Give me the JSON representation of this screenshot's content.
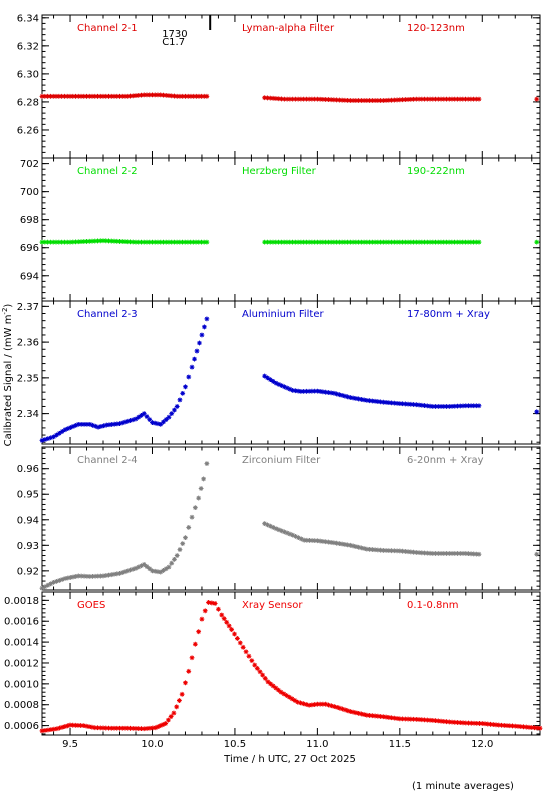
{
  "chart_data": {
    "type": "scatter",
    "xlabel": "Time / h UTC, 27 Oct 2025",
    "ylabel": "Calibrated Signal / (mW m",
    "ylabel_sup": "-2",
    "ylabel_close": ")",
    "xlim": [
      9.33,
      12.35
    ],
    "xticks": [
      9.5,
      10.0,
      10.5,
      11.0,
      11.5,
      12.0
    ],
    "xtick_labels": [
      "9.5",
      "10.0",
      "10.5",
      "11.0",
      "11.5",
      "12.0"
    ],
    "marker": "asterisk",
    "data_gap_hours": [
      10.34,
      10.68
    ],
    "flare_marker": {
      "time": 10.35,
      "label": "1730",
      "class": "C1.7"
    },
    "footnote": "(1 minute averages)",
    "panels": [
      {
        "id": "ch21",
        "channel": "Channel 2-1",
        "filter": "Lyman-alpha Filter",
        "band": "120-123nm",
        "color": "#dd0000",
        "ylim": [
          6.24,
          6.342
        ],
        "yticks": [
          6.26,
          6.28,
          6.3,
          6.32,
          6.34
        ],
        "ytick_labels": [
          "6.26",
          "6.28",
          "6.30",
          "6.32",
          "6.34"
        ],
        "series": [
          {
            "x": [
              9.33,
              9.5,
              9.7,
              9.85,
              9.95,
              10.05,
              10.15,
              10.25,
              10.33
            ],
            "y": [
              6.284,
              6.284,
              6.284,
              6.284,
              6.285,
              6.285,
              6.284,
              6.284,
              6.284
            ]
          },
          {
            "x": [
              10.68,
              10.8,
              11.0,
              11.2,
              11.4,
              11.6,
              11.8,
              11.98
            ],
            "y": [
              6.283,
              6.282,
              6.282,
              6.281,
              6.281,
              6.282,
              6.282,
              6.282
            ]
          },
          {
            "x": [
              12.33
            ],
            "y": [
              6.282
            ]
          }
        ]
      },
      {
        "id": "ch22",
        "channel": "Channel 2-2",
        "filter": "Herzberg Filter",
        "band": "190-222nm",
        "color": "#00dd00",
        "ylim": [
          692.2,
          702.4
        ],
        "yticks": [
          694,
          696,
          698,
          700,
          702
        ],
        "ytick_labels": [
          "694",
          "696",
          "698",
          "700",
          "702"
        ],
        "series": [
          {
            "x": [
              9.33,
              9.5,
              9.7,
              9.9,
              10.1,
              10.33
            ],
            "y": [
              696.4,
              696.4,
              696.5,
              696.4,
              696.4,
              696.4
            ]
          },
          {
            "x": [
              10.68,
              10.9,
              11.1,
              11.3,
              11.5,
              11.7,
              11.98
            ],
            "y": [
              696.4,
              696.4,
              696.4,
              696.4,
              696.4,
              696.4,
              696.4
            ]
          },
          {
            "x": [
              12.33
            ],
            "y": [
              696.4
            ]
          }
        ]
      },
      {
        "id": "ch23",
        "channel": "Channel 2-3",
        "filter": "Aluminium Filter",
        "band": "17-80nm + Xray",
        "color": "#0000cc",
        "ylim": [
          2.3315,
          2.3715
        ],
        "yticks": [
          2.34,
          2.35,
          2.36,
          2.37
        ],
        "ytick_labels": [
          "2.34",
          "2.35",
          "2.36",
          "2.37"
        ],
        "series": [
          {
            "x": [
              9.33,
              9.4,
              9.47,
              9.55,
              9.62,
              9.67,
              9.72,
              9.8,
              9.9,
              9.95,
              10.0,
              10.05,
              10.1,
              10.15,
              10.2,
              10.24,
              10.27,
              10.3,
              10.33
            ],
            "y": [
              2.3325,
              2.3335,
              2.3355,
              2.337,
              2.337,
              2.3362,
              2.3368,
              2.3372,
              2.3385,
              2.34,
              2.3375,
              2.337,
              2.339,
              2.342,
              2.3475,
              2.353,
              2.3575,
              2.362,
              2.3665
            ]
          },
          {
            "x": [
              10.68,
              10.75,
              10.85,
              10.9,
              11.0,
              11.1,
              11.2,
              11.3,
              11.4,
              11.5,
              11.6,
              11.7,
              11.8,
              11.9,
              11.98
            ],
            "y": [
              2.3505,
              2.3485,
              2.3465,
              2.3462,
              2.3463,
              2.3457,
              2.3445,
              2.3437,
              2.3432,
              2.3428,
              2.3425,
              2.342,
              2.342,
              2.3422,
              2.3422
            ]
          },
          {
            "x": [
              12.33
            ],
            "y": [
              2.3405
            ]
          }
        ]
      },
      {
        "id": "ch24",
        "channel": "Channel 2-4",
        "filter": "Zirconium Filter",
        "band": "6-20nm + Xray",
        "color": "#808080",
        "ylim": [
          0.9125,
          0.9685
        ],
        "yticks": [
          0.92,
          0.93,
          0.94,
          0.95,
          0.96
        ],
        "ytick_labels": [
          "0.92",
          "0.93",
          "0.94",
          "0.95",
          "0.96"
        ],
        "series": [
          {
            "x": [
              9.33,
              9.4,
              9.47,
              9.55,
              9.62,
              9.7,
              9.8,
              9.9,
              9.95,
              10.0,
              10.05,
              10.1,
              10.15,
              10.2,
              10.24,
              10.28,
              10.31,
              10.33
            ],
            "y": [
              0.9132,
              0.9155,
              0.917,
              0.918,
              0.9178,
              0.918,
              0.919,
              0.921,
              0.9225,
              0.92,
              0.9195,
              0.9215,
              0.926,
              0.933,
              0.941,
              0.9485,
              0.956,
              0.962
            ]
          },
          {
            "x": [
              10.68,
              10.75,
              10.85,
              10.92,
              11.0,
              11.1,
              11.2,
              11.3,
              11.4,
              11.5,
              11.6,
              11.7,
              11.8,
              11.9,
              11.98
            ],
            "y": [
              0.9385,
              0.9365,
              0.934,
              0.932,
              0.9318,
              0.931,
              0.93,
              0.9285,
              0.928,
              0.9278,
              0.9272,
              0.9268,
              0.9268,
              0.9268,
              0.9265
            ]
          },
          {
            "x": [
              12.33
            ],
            "y": [
              0.9265
            ]
          }
        ]
      },
      {
        "id": "goes",
        "channel": "GOES",
        "filter": "Xray Sensor",
        "band": "0.1-0.8nm",
        "color": "#ee0000",
        "ylim": [
          0.00051,
          0.00188
        ],
        "yticks": [
          0.0006,
          0.0008,
          0.001,
          0.0012,
          0.0014,
          0.0016,
          0.0018
        ],
        "ytick_labels": [
          "0.0006",
          "0.0008",
          "0.0010",
          "0.0012",
          "0.0014",
          "0.0016",
          "0.0018"
        ],
        "series": [
          {
            "x": [
              9.33,
              9.42,
              9.5,
              9.58,
              9.65,
              9.75,
              9.85,
              9.95,
              10.02,
              10.08,
              10.13,
              10.18,
              10.22,
              10.26,
              10.3,
              10.34,
              10.38,
              10.42,
              10.48,
              10.55,
              10.62,
              10.7,
              10.78,
              10.88,
              10.95,
              11.0,
              11.05,
              11.12,
              11.2,
              11.3,
              11.4,
              11.5,
              11.6,
              11.7,
              11.8,
              11.9,
              12.0,
              12.1,
              12.2,
              12.35
            ],
            "y": [
              0.00055,
              0.00057,
              0.000605,
              0.0006,
              0.00058,
              0.000575,
              0.000575,
              0.00057,
              0.00058,
              0.00062,
              0.00072,
              0.0009,
              0.00112,
              0.00138,
              0.00162,
              0.00178,
              0.00177,
              0.00166,
              0.00152,
              0.00135,
              0.00118,
              0.00102,
              0.00092,
              0.000825,
              0.000795,
              0.000805,
              0.000805,
              0.000775,
              0.000735,
              0.0007,
              0.000685,
              0.000665,
              0.00066,
              0.00065,
              0.000635,
              0.000625,
              0.00062,
              0.000605,
              0.000595,
              0.000575
            ]
          }
        ]
      }
    ]
  }
}
